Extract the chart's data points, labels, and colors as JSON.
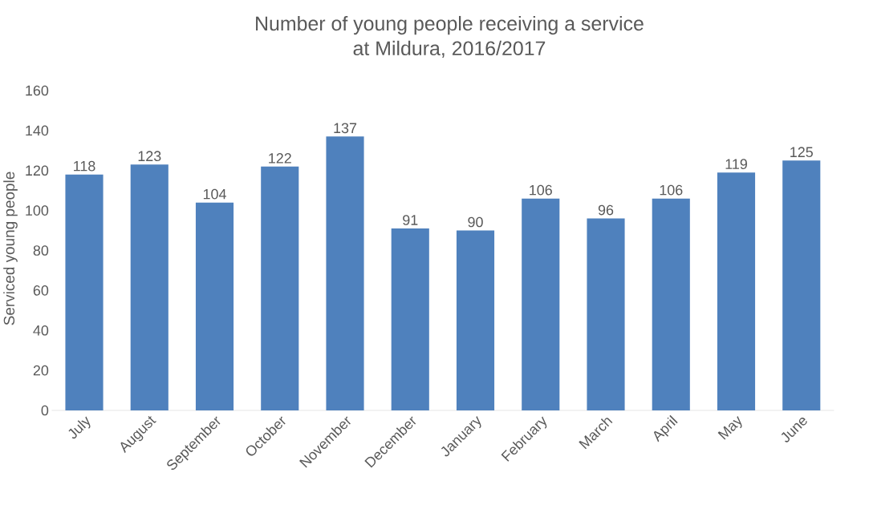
{
  "chart_data": {
    "type": "bar",
    "title": "Number of young people receiving a service\nat Mildura, 2016/2017",
    "ylabel": "Serviced young people",
    "categories": [
      "July",
      "August",
      "September",
      "October",
      "November",
      "December",
      "January",
      "February",
      "March",
      "April",
      "May",
      "June"
    ],
    "values": [
      118,
      123,
      104,
      122,
      137,
      91,
      90,
      106,
      96,
      106,
      119,
      125
    ],
    "color": "#4f81bd",
    "ylim": [
      0,
      160
    ],
    "yticks": [
      0,
      20,
      40,
      60,
      80,
      100,
      120,
      140,
      160
    ],
    "data_labels": true
  }
}
